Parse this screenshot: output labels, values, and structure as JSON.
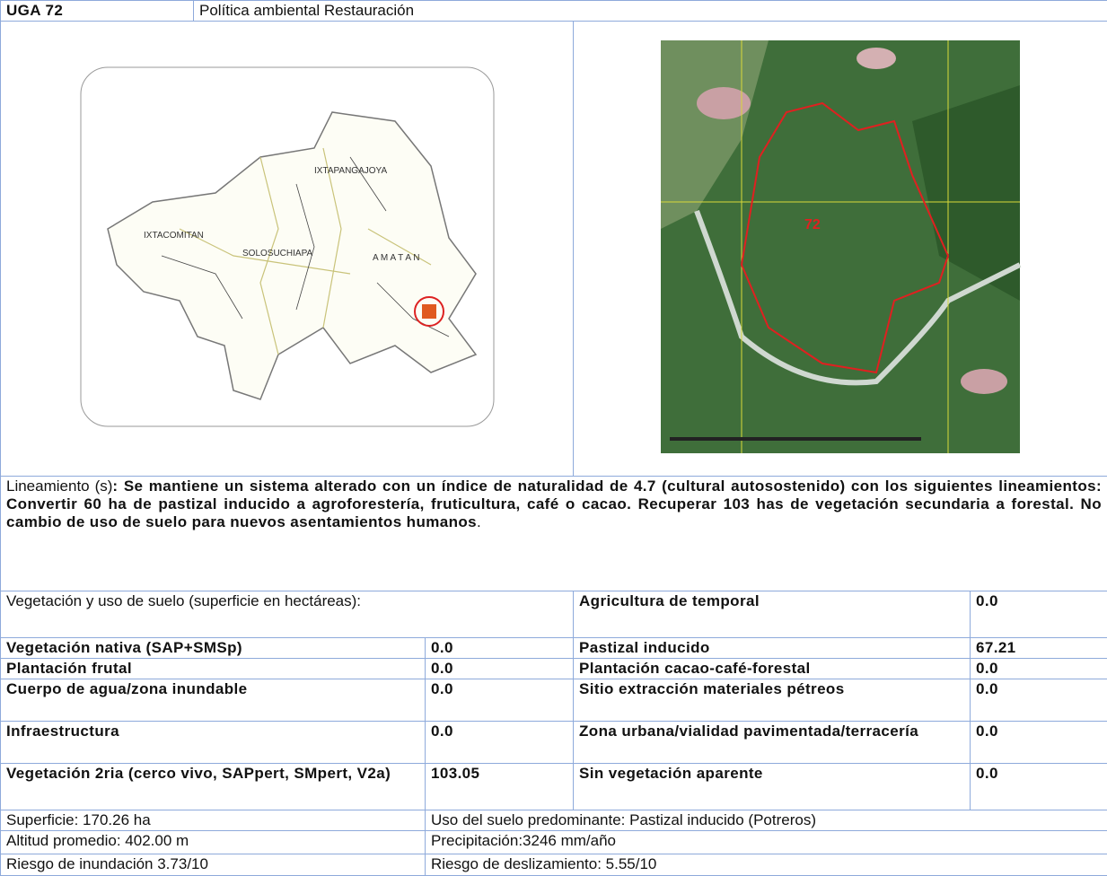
{
  "header": {
    "code": "UGA 72",
    "policy": "Política ambiental Restauración"
  },
  "maps": {
    "locator_labels": [
      "IXTAPANGAJOYA",
      "IXTACOMITAN",
      "SOLOSUCHIAPA",
      "A M A T A N"
    ],
    "satellite_label": "72"
  },
  "guideline": {
    "label": "Lineamiento (s)",
    "text": ": Se mantiene un sistema alterado con un índice de naturalidad de 4.7 (cultural autosostenido) con los siguientes lineamientos: Convertir 60 ha de pastizal inducido a agroforestería, fruticultura, café o cacao. Recuperar 103 has de vegetación secundaria a forestal. No cambio de uso de suelo para nuevos asentamientos humanos",
    "end": "."
  },
  "land_use": {
    "heading": "Vegetación y uso de suelo (superficie en hectáreas):",
    "left": [
      {
        "name": "Vegetación nativa (SAP+SMSp)",
        "value": "0.0"
      },
      {
        "name": "Plantación frutal",
        "value": "0.0"
      },
      {
        "name": "Cuerpo de agua/zona inundable",
        "value": "0.0"
      },
      {
        "name": "Infraestructura",
        "value": "0.0"
      },
      {
        "name": "Vegetación 2ria (cerco vivo, SAPpert, SMpert, V2a)",
        "value": "103.05"
      }
    ],
    "right": [
      {
        "name": "Agricultura de temporal",
        "value": "0.0"
      },
      {
        "name": "Pastizal inducido",
        "value": "67.21"
      },
      {
        "name": "Plantación cacao-café-forestal",
        "value": "0.0"
      },
      {
        "name": "Sitio extracción materiales pétreos",
        "value": "0.0"
      },
      {
        "name": "Zona urbana/vialidad pavimentada/terracería",
        "value": "0.0"
      },
      {
        "name": "Sin vegetación aparente",
        "value": "0.0"
      }
    ]
  },
  "summary": [
    [
      "Superficie: 170.26 ha",
      "Uso del suelo predominante: Pastizal inducido (Potreros)"
    ],
    [
      "Altitud promedio: 402.00 m",
      "Precipitación:3246 mm/año"
    ],
    [
      "Riesgo de inundación 3.73/10",
      "Riesgo de deslizamiento: 5.55/10"
    ]
  ]
}
